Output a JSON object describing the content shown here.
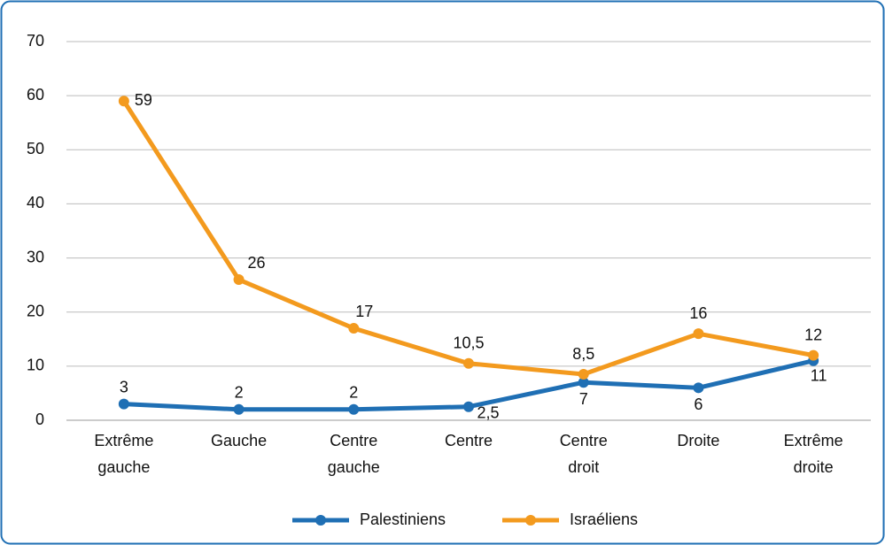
{
  "chart_data": {
    "type": "line",
    "categories": [
      "Extrême gauche",
      "Gauche",
      "Centre gauche",
      "Centre",
      "Centre droit",
      "Droite",
      "Extrême droite"
    ],
    "series": [
      {
        "name": "Palestiniens",
        "color": "#1f6fb4",
        "values": [
          3,
          2,
          2,
          2.5,
          7,
          6,
          11
        ],
        "value_labels": [
          "3",
          "2",
          "2",
          "2,5",
          "7",
          "6",
          "11"
        ]
      },
      {
        "name": "Israéliens",
        "color": "#f39a1e",
        "values": [
          59,
          26,
          17,
          10.5,
          8.5,
          16,
          12
        ],
        "value_labels": [
          "59",
          "26",
          "17",
          "10,5",
          "8,5",
          "16",
          "12"
        ]
      }
    ],
    "ylim": [
      0,
      70
    ],
    "yticks": [
      0,
      10,
      20,
      30,
      40,
      50,
      60,
      70
    ],
    "grid": true,
    "legend": "bottom"
  }
}
